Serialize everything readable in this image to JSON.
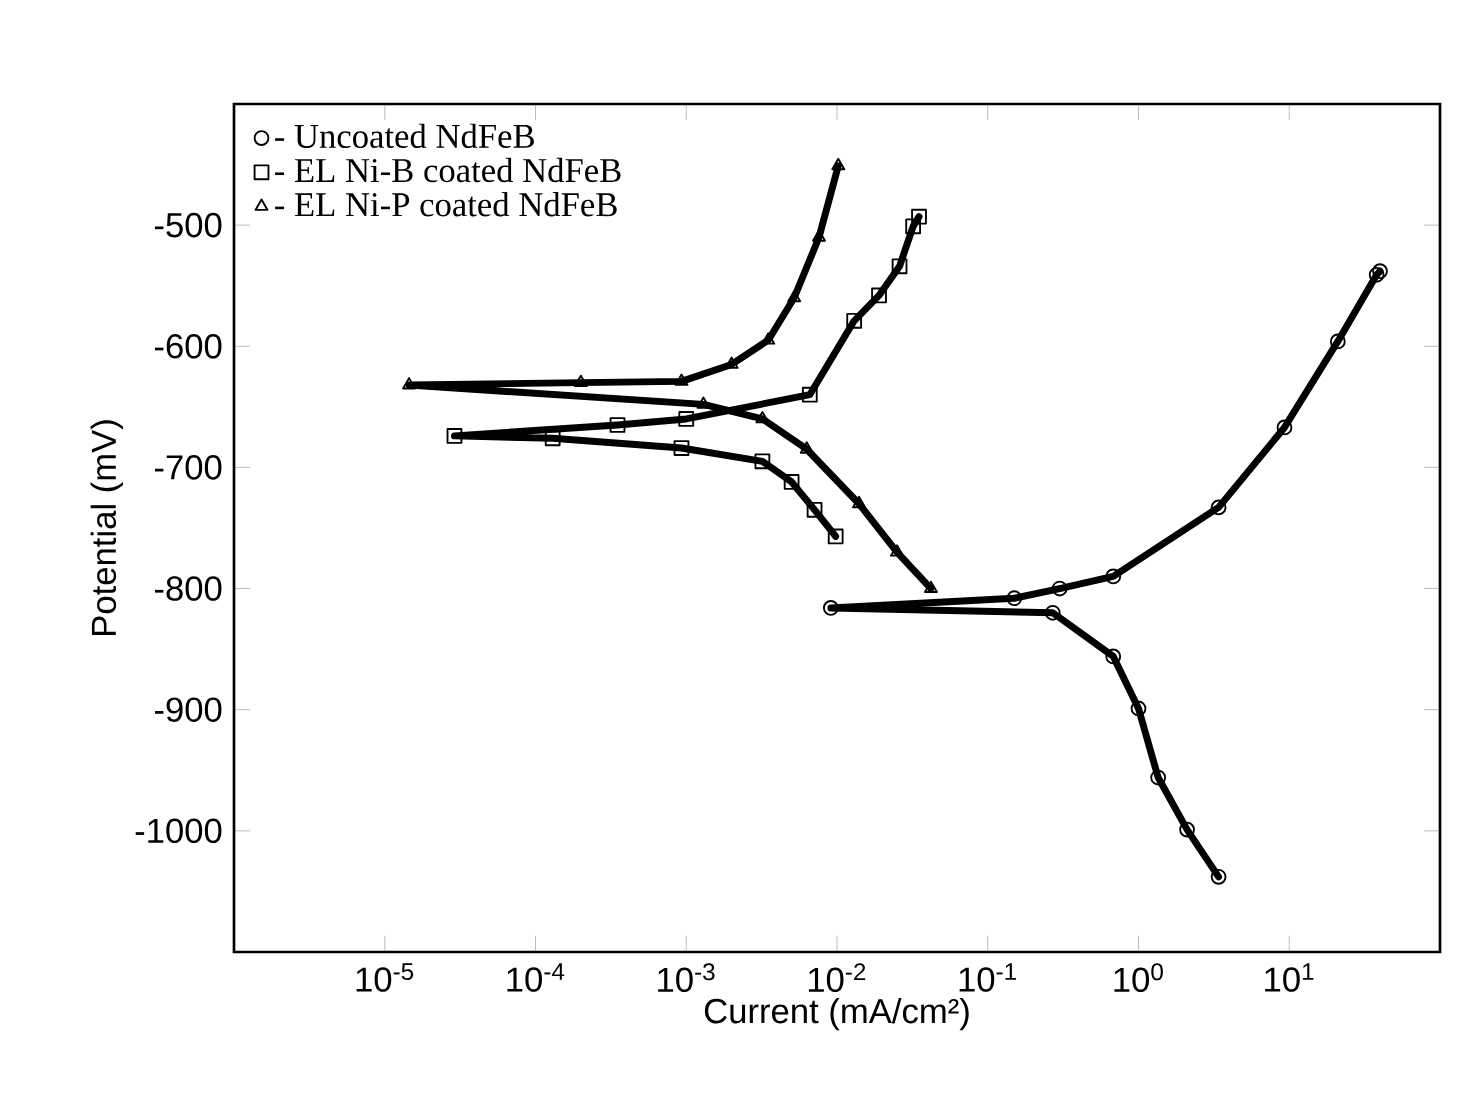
{
  "chart_data": {
    "type": "line",
    "xlabel": "Current (mA/cm²)",
    "ylabel": "Potential (mV)",
    "log": "x",
    "xlim": [
      1e-06,
      100
    ],
    "ylim": [
      -1100,
      -400
    ],
    "xticks": [
      {
        "value": 1e-05,
        "label": "10$^{-5}$"
      },
      {
        "value": 0.0001,
        "label": "10$^{-4}$"
      },
      {
        "value": 0.001,
        "label": "10$^{-3}$"
      },
      {
        "value": 0.01,
        "label": "10$^{-2}$"
      },
      {
        "value": 0.1,
        "label": "10$^{-1}$"
      },
      {
        "value": 1,
        "label": "10$^{0}$"
      },
      {
        "value": 10,
        "label": "10$^{1}$"
      }
    ],
    "yticks": [
      -500,
      -600,
      -700,
      -800,
      -900,
      -1000
    ],
    "grid": false,
    "legend": "top left",
    "line_style": "solid",
    "series": [
      {
        "name": "- Uncoated NdFeB",
        "color": "#000000",
        "marker": "circle",
        "x": [
          3.4,
          2.1,
          1.35,
          1.0,
          0.68,
          0.27,
          0.0091,
          0.15,
          0.3,
          0.68,
          3.4,
          9.3,
          21,
          38,
          40
        ],
        "values": [
          -1038,
          -999,
          -956,
          -899,
          -856,
          -820,
          -816,
          -808,
          -800,
          -790,
          -733,
          -667,
          -596,
          -541,
          -538
        ]
      },
      {
        "name": "- EL Ni-B coated NdFeB",
        "color": "#000000",
        "marker": "square",
        "x": [
          0.0098,
          0.0071,
          0.005,
          0.0032,
          0.00093,
          0.00013,
          2.9e-05,
          0.00035,
          0.001,
          0.0066,
          0.013,
          0.019,
          0.026,
          0.032,
          0.035
        ],
        "values": [
          -757,
          -735,
          -712,
          -695,
          -684,
          -676,
          -674,
          -665,
          -660,
          -640,
          -579,
          -558,
          -534,
          -501,
          -493
        ]
      },
      {
        "name": "- EL Ni-P coated NdFeB",
        "color": "#000000",
        "marker": "triangle",
        "x": [
          0.042,
          0.025,
          0.014,
          0.0063,
          0.0032,
          0.0013,
          1.45e-05,
          0.0002,
          0.00093,
          0.002,
          0.0035,
          0.0052,
          0.0076,
          0.0102
        ],
        "values": [
          -800,
          -770,
          -730,
          -685,
          -660,
          -648,
          -632,
          -630,
          -629,
          -615,
          -595,
          -560,
          -510,
          -451
        ]
      }
    ]
  }
}
